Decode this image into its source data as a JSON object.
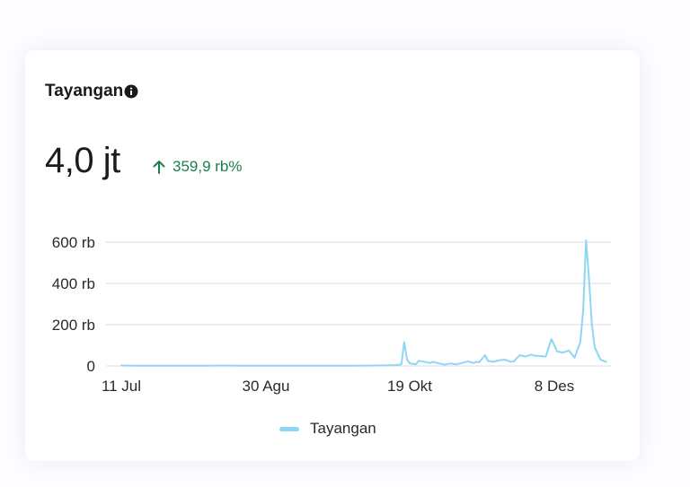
{
  "header": {
    "title": "Tayangan",
    "total": "4,0 jt",
    "change": "359,9 rb%"
  },
  "icons": {
    "info": "info-circle-icon",
    "trend": "arrow-up-icon"
  },
  "colors": {
    "series": "#8fd6f5",
    "positive": "#1b7f4b",
    "grid": "#dcdcdc"
  },
  "chart_data": {
    "type": "line",
    "x_ticks": [
      "11 Jul",
      "30 Agu",
      "19 Okt",
      "8 Des"
    ],
    "y_ticks": [
      "0",
      "200 rb",
      "400 rb",
      "600 rb"
    ],
    "ylim": [
      0,
      600000
    ],
    "grid": true,
    "legend_position": "bottom",
    "series": [
      {
        "name": "Tayangan",
        "points": [
          [
            "11 Jul",
            2000
          ],
          [
            "15 Jul",
            1000
          ],
          [
            "20 Jul",
            1500
          ],
          [
            "25 Jul",
            800
          ],
          [
            "30 Jul",
            1200
          ],
          [
            "5 Agu",
            1000
          ],
          [
            "10 Agu",
            1500
          ],
          [
            "15 Agu",
            1800
          ],
          [
            "20 Agu",
            1500
          ],
          [
            "25 Agu",
            1200
          ],
          [
            "30 Agu",
            1000
          ],
          [
            "5 Sep",
            1200
          ],
          [
            "10 Sep",
            1500
          ],
          [
            "15 Sep",
            1300
          ],
          [
            "20 Sep",
            1500
          ],
          [
            "25 Sep",
            1200
          ],
          [
            "30 Sep",
            1500
          ],
          [
            "5 Okt",
            1800
          ],
          [
            "10 Okt",
            2500
          ],
          [
            "14 Okt",
            4000
          ],
          [
            "16 Okt",
            8000
          ],
          [
            "17 Okt",
            115000
          ],
          [
            "18 Okt",
            30000
          ],
          [
            "19 Okt",
            12000
          ],
          [
            "21 Okt",
            8000
          ],
          [
            "22 Okt",
            25000
          ],
          [
            "24 Okt",
            20000
          ],
          [
            "26 Okt",
            14000
          ],
          [
            "27 Okt",
            20000
          ],
          [
            "29 Okt",
            12000
          ],
          [
            "31 Okt",
            6000
          ],
          [
            "2 Nov",
            12000
          ],
          [
            "4 Nov",
            8000
          ],
          [
            "6 Nov",
            14000
          ],
          [
            "8 Nov",
            22000
          ],
          [
            "10 Nov",
            14000
          ],
          [
            "11 Nov",
            20000
          ],
          [
            "12 Nov",
            18000
          ],
          [
            "14 Nov",
            52000
          ],
          [
            "15 Nov",
            24000
          ],
          [
            "17 Nov",
            20000
          ],
          [
            "19 Nov",
            28000
          ],
          [
            "21 Nov",
            30000
          ],
          [
            "23 Nov",
            20000
          ],
          [
            "24 Nov",
            22000
          ],
          [
            "26 Nov",
            52000
          ],
          [
            "28 Nov",
            45000
          ],
          [
            "30 Nov",
            55000
          ],
          [
            "1 Des",
            50000
          ],
          [
            "3 Des",
            48000
          ],
          [
            "5 Des",
            45000
          ],
          [
            "7 Des",
            130000
          ],
          [
            "9 Des",
            70000
          ],
          [
            "11 Des",
            65000
          ],
          [
            "13 Des",
            75000
          ],
          [
            "15 Des",
            40000
          ],
          [
            "17 Des",
            115000
          ],
          [
            "18 Des",
            270000
          ],
          [
            "19 Des",
            610000
          ],
          [
            "20 Des",
            420000
          ],
          [
            "21 Des",
            200000
          ],
          [
            "22 Des",
            90000
          ],
          [
            "24 Des",
            30000
          ],
          [
            "26 Des",
            20000
          ]
        ]
      }
    ]
  }
}
